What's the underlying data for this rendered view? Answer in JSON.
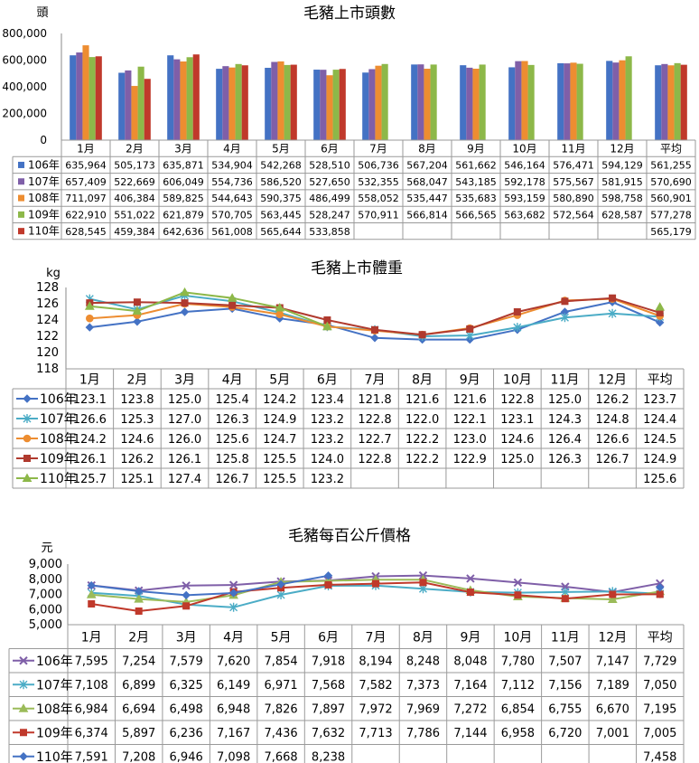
{
  "charts_meta": {
    "months": [
      "1月",
      "2月",
      "3月",
      "4月",
      "5月",
      "6月",
      "7月",
      "8月",
      "9月",
      "10月",
      "11月",
      "12月",
      "平均"
    ]
  },
  "chart_data": [
    {
      "type": "bar",
      "title": "毛豬上市頭數",
      "ylabel": "頭",
      "ylim": [
        0,
        800000
      ],
      "yticks": [
        "800,000",
        "600,000",
        "400,000",
        "200,000",
        "0"
      ],
      "categories": [
        "1月",
        "2月",
        "3月",
        "4月",
        "5月",
        "6月",
        "7月",
        "8月",
        "9月",
        "10月",
        "11月",
        "12月",
        "平均"
      ],
      "series": [
        {
          "name": "106年",
          "color": "#4472C4",
          "values": [
            635964,
            505173,
            635871,
            534904,
            542268,
            528510,
            506736,
            567204,
            561662,
            546164,
            576471,
            594129,
            561255
          ],
          "labels": [
            "635,964",
            "505,173",
            "635,871",
            "534,904",
            "542,268",
            "528,510",
            "506,736",
            "567,204",
            "561,662",
            "546,164",
            "576,471",
            "594,129",
            "561,255"
          ]
        },
        {
          "name": "107年",
          "color": "#7F5FA8",
          "values": [
            657409,
            522669,
            606049,
            554736,
            586520,
            527650,
            532355,
            568047,
            543185,
            592178,
            575567,
            581915,
            570690
          ],
          "labels": [
            "657,409",
            "522,669",
            "606,049",
            "554,736",
            "586,520",
            "527,650",
            "532,355",
            "568,047",
            "543,185",
            "592,178",
            "575,567",
            "581,915",
            "570,690"
          ]
        },
        {
          "name": "108年",
          "color": "#ED8D31",
          "values": [
            711097,
            406384,
            589825,
            544643,
            590375,
            486499,
            558052,
            535447,
            535683,
            593159,
            580890,
            598758,
            560901
          ],
          "labels": [
            "711,097",
            "406,384",
            "589,825",
            "544,643",
            "590,375",
            "486,499",
            "558,052",
            "535,447",
            "535,683",
            "593,159",
            "580,890",
            "598,758",
            "560,901"
          ]
        },
        {
          "name": "109年",
          "color": "#8DB849",
          "values": [
            622910,
            551022,
            621879,
            570705,
            563445,
            528247,
            570911,
            566814,
            566565,
            563682,
            572564,
            628587,
            577278
          ],
          "labels": [
            "622,910",
            "551,022",
            "621,879",
            "570,705",
            "563,445",
            "528,247",
            "570,911",
            "566,814",
            "566,565",
            "563,682",
            "572,564",
            "628,587",
            "577,278"
          ]
        },
        {
          "name": "110年",
          "color": "#C0392B",
          "values": [
            628545,
            459384,
            642636,
            561008,
            565644,
            533858,
            null,
            null,
            null,
            null,
            null,
            null,
            565179
          ],
          "labels": [
            "628,545",
            "459,384",
            "642,636",
            "561,008",
            "565,644",
            "533,858",
            "",
            "",
            "",
            "",
            "",
            "",
            "565,179"
          ]
        }
      ]
    },
    {
      "type": "line",
      "title": "毛豬上市體重",
      "ylabel": "kg",
      "ylim": [
        118,
        128
      ],
      "yticks": [
        "128",
        "126",
        "124",
        "122",
        "120",
        "118"
      ],
      "categories": [
        "1月",
        "2月",
        "3月",
        "4月",
        "5月",
        "6月",
        "7月",
        "8月",
        "9月",
        "10月",
        "11月",
        "12月",
        "平均"
      ],
      "series": [
        {
          "name": "106年",
          "color": "#4472C4",
          "marker": "diamond",
          "values": [
            123.1,
            123.8,
            125.0,
            125.4,
            124.2,
            123.4,
            121.8,
            121.6,
            121.6,
            122.8,
            125.0,
            126.2,
            123.7
          ],
          "labels": [
            "123.1",
            "123.8",
            "125.0",
            "125.4",
            "124.2",
            "123.4",
            "121.8",
            "121.6",
            "121.6",
            "122.8",
            "125.0",
            "126.2",
            "123.7"
          ]
        },
        {
          "name": "107年",
          "color": "#4BACC6",
          "marker": "star",
          "values": [
            126.6,
            125.3,
            127.0,
            126.3,
            124.9,
            123.2,
            122.8,
            122.0,
            122.1,
            123.1,
            124.3,
            124.8,
            124.4
          ],
          "labels": [
            "126.6",
            "125.3",
            "127.0",
            "126.3",
            "124.9",
            "123.2",
            "122.8",
            "122.0",
            "122.1",
            "123.1",
            "124.3",
            "124.8",
            "124.4"
          ]
        },
        {
          "name": "108年",
          "color": "#ED8D31",
          "marker": "circle",
          "values": [
            124.2,
            124.6,
            126.0,
            125.6,
            124.7,
            123.2,
            122.7,
            122.2,
            123.0,
            124.6,
            126.4,
            126.6,
            124.5
          ],
          "labels": [
            "124.2",
            "124.6",
            "126.0",
            "125.6",
            "124.7",
            "123.2",
            "122.7",
            "122.2",
            "123.0",
            "124.6",
            "126.4",
            "126.6",
            "124.5"
          ]
        },
        {
          "name": "109年",
          "color": "#B03A2E",
          "marker": "square",
          "values": [
            126.1,
            126.2,
            126.1,
            125.8,
            125.5,
            124.0,
            122.8,
            122.2,
            122.9,
            125.0,
            126.3,
            126.7,
            124.9
          ],
          "labels": [
            "126.1",
            "126.2",
            "126.1",
            "125.8",
            "125.5",
            "124.0",
            "122.8",
            "122.2",
            "122.9",
            "125.0",
            "126.3",
            "126.7",
            "124.9"
          ]
        },
        {
          "name": "110年",
          "color": "#8DB849",
          "marker": "triangle",
          "values": [
            125.7,
            125.1,
            127.4,
            126.7,
            125.5,
            123.2,
            null,
            null,
            null,
            null,
            null,
            null,
            125.6
          ],
          "labels": [
            "125.7",
            "125.1",
            "127.4",
            "126.7",
            "125.5",
            "123.2",
            "",
            "",
            "",
            "",
            "",
            "",
            "125.6"
          ]
        }
      ]
    },
    {
      "type": "line",
      "title": "毛豬每百公斤價格",
      "ylabel": "元",
      "ylim": [
        5000,
        9000
      ],
      "yticks": [
        "9,000",
        "8,000",
        "7,000",
        "6,000",
        "5,000"
      ],
      "categories": [
        "1月",
        "2月",
        "3月",
        "4月",
        "5月",
        "6月",
        "7月",
        "8月",
        "9月",
        "10月",
        "11月",
        "12月",
        "平均"
      ],
      "series": [
        {
          "name": "106年",
          "color": "#7F5FA8",
          "marker": "x",
          "values": [
            7595,
            7254,
            7579,
            7620,
            7854,
            7918,
            8194,
            8248,
            8048,
            7780,
            7507,
            7147,
            7729
          ],
          "labels": [
            "7,595",
            "7,254",
            "7,579",
            "7,620",
            "7,854",
            "7,918",
            "8,194",
            "8,248",
            "8,048",
            "7,780",
            "7,507",
            "7,147",
            "7,729"
          ]
        },
        {
          "name": "107年",
          "color": "#4BACC6",
          "marker": "star",
          "values": [
            7108,
            6899,
            6325,
            6149,
            6971,
            7568,
            7582,
            7373,
            7164,
            7112,
            7156,
            7189,
            7050
          ],
          "labels": [
            "7,108",
            "6,899",
            "6,325",
            "6,149",
            "6,971",
            "7,568",
            "7,582",
            "7,373",
            "7,164",
            "7,112",
            "7,156",
            "7,189",
            "7,050"
          ]
        },
        {
          "name": "108年",
          "color": "#9BBB59",
          "marker": "triangle",
          "values": [
            6984,
            6694,
            6498,
            6948,
            7826,
            7897,
            7972,
            7969,
            7272,
            6854,
            6755,
            6670,
            7195
          ],
          "labels": [
            "6,984",
            "6,694",
            "6,498",
            "6,948",
            "7,826",
            "7,897",
            "7,972",
            "7,969",
            "7,272",
            "6,854",
            "6,755",
            "6,670",
            "7,195"
          ]
        },
        {
          "name": "109年",
          "color": "#C0392B",
          "marker": "square",
          "values": [
            6374,
            5897,
            6236,
            7167,
            7436,
            7632,
            7713,
            7786,
            7144,
            6958,
            6720,
            7001,
            7005
          ],
          "labels": [
            "6,374",
            "5,897",
            "6,236",
            "7,167",
            "7,436",
            "7,632",
            "7,713",
            "7,786",
            "7,144",
            "6,958",
            "6,720",
            "7,001",
            "7,005"
          ]
        },
        {
          "name": "110年",
          "color": "#4472C4",
          "marker": "diamond",
          "values": [
            7591,
            7208,
            6946,
            7098,
            7668,
            8238,
            null,
            null,
            null,
            null,
            null,
            null,
            7458
          ],
          "labels": [
            "7,591",
            "7,208",
            "6,946",
            "7,098",
            "7,668",
            "8,238",
            "",
            "",
            "",
            "",
            "",
            "",
            "7,458"
          ]
        }
      ]
    }
  ]
}
